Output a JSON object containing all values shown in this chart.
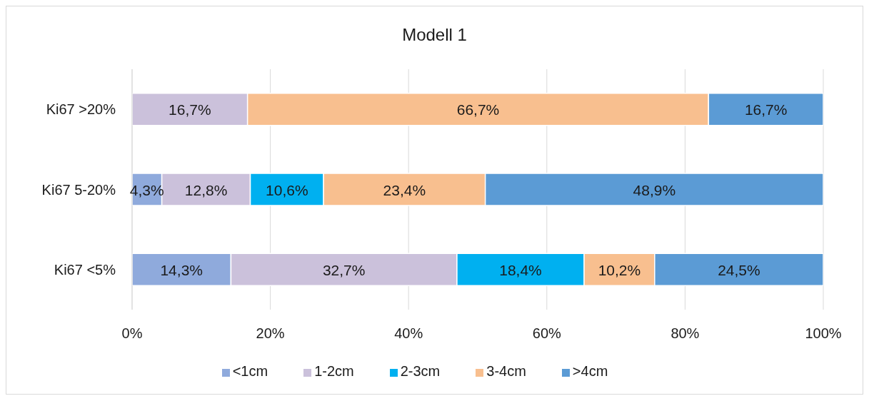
{
  "chart_data": {
    "type": "bar",
    "orientation": "horizontal",
    "stacked": true,
    "title": "Modell 1",
    "categories": [
      "Ki67 >20%",
      "Ki67 5-20%",
      "Ki67 <5%"
    ],
    "series": [
      {
        "name": "<1cm",
        "color": "#8faadc",
        "values": [
          null,
          4.3,
          14.3
        ],
        "value_labels": [
          null,
          "4,3%",
          "14,3%"
        ]
      },
      {
        "name": "1-2cm",
        "color": "#cbc1db",
        "values": [
          16.7,
          12.8,
          32.7
        ],
        "value_labels": [
          "16,7%",
          "12,8%",
          "32,7%"
        ]
      },
      {
        "name": "2-3cm",
        "color": "#00b0f0",
        "values": [
          null,
          10.6,
          18.4
        ],
        "value_labels": [
          null,
          "10,6%",
          "18,4%"
        ]
      },
      {
        "name": "3-4cm",
        "color": "#f8bf8f",
        "values": [
          66.7,
          23.4,
          10.2
        ],
        "value_labels": [
          "66,7%",
          "23,4%",
          "10,2%"
        ]
      },
      {
        "name": ">4cm",
        "color": "#5b9bd5",
        "values": [
          16.7,
          48.9,
          24.5
        ],
        "value_labels": [
          "16,7%",
          "48,9%",
          "24,5%"
        ]
      }
    ],
    "xlim": [
      0,
      100
    ],
    "xticks": [
      {
        "value": 0,
        "label": "0%"
      },
      {
        "value": 20,
        "label": "20%"
      },
      {
        "value": 40,
        "label": "40%"
      },
      {
        "value": 60,
        "label": "60%"
      },
      {
        "value": 80,
        "label": "80%"
      },
      {
        "value": 100,
        "label": "100%"
      }
    ],
    "grid": "x",
    "legend": "bottom"
  }
}
